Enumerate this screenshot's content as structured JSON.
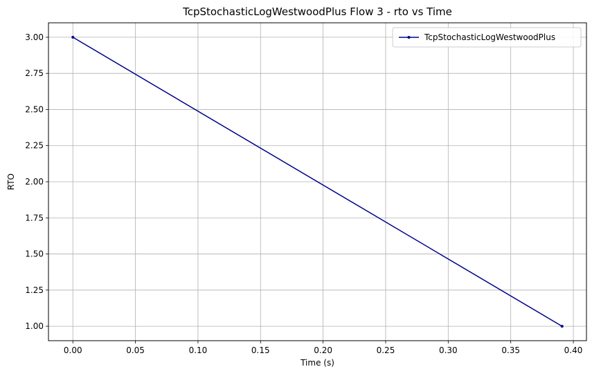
{
  "chart_data": {
    "type": "line",
    "title": "TcpStochasticLogWestwoodPlus Flow 3 - rto vs Time",
    "xlabel": "Time (s)",
    "ylabel": "RTO",
    "xlim": [
      -0.0195,
      0.4105
    ],
    "ylim": [
      0.9,
      3.1
    ],
    "xticks": [
      0.0,
      0.05,
      0.1,
      0.15,
      0.2,
      0.25,
      0.3,
      0.35,
      0.4
    ],
    "xtick_labels": [
      "0.00",
      "0.05",
      "0.10",
      "0.15",
      "0.20",
      "0.25",
      "0.30",
      "0.35",
      "0.40"
    ],
    "yticks": [
      1.0,
      1.25,
      1.5,
      1.75,
      2.0,
      2.25,
      2.5,
      2.75,
      3.0
    ],
    "ytick_labels": [
      "1.00",
      "1.25",
      "1.50",
      "1.75",
      "2.00",
      "2.25",
      "2.50",
      "2.75",
      "3.00"
    ],
    "grid": true,
    "legend_position": "top-right",
    "series": [
      {
        "name": "TcpStochasticLogWestwoodPlus",
        "color": "#00008b",
        "marker": "dot",
        "x": [
          0.0,
          0.391
        ],
        "y": [
          3.0,
          1.0
        ]
      }
    ]
  }
}
